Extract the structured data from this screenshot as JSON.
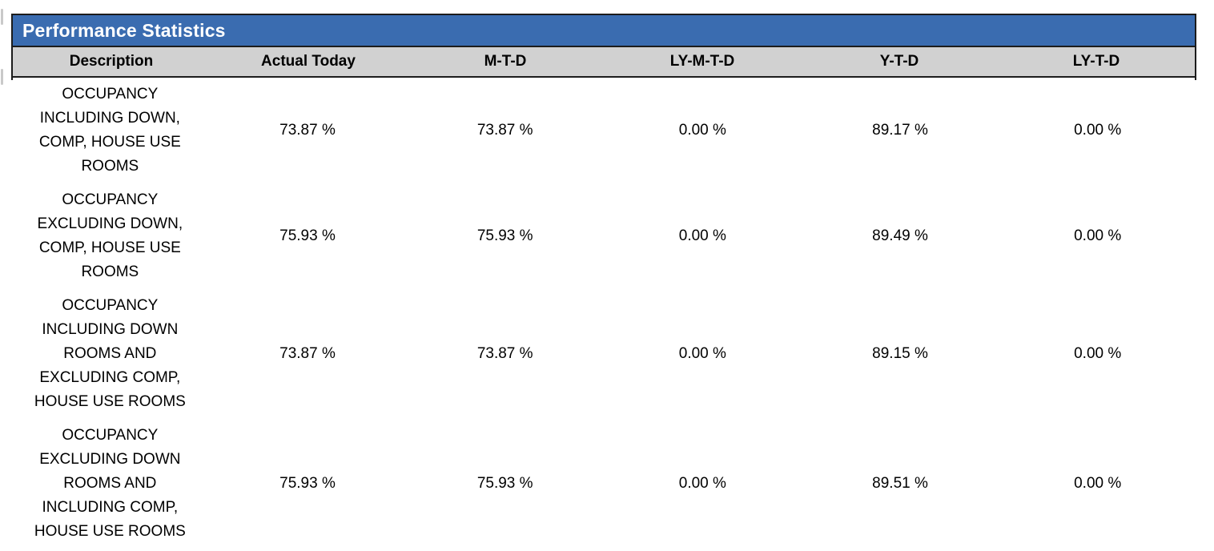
{
  "panel": {
    "title": "Performance Statistics",
    "colors": {
      "title_bar": "#3A6CB0",
      "title_text": "#FFFFFF",
      "header_row": "#D1D1D1",
      "border": "#1C1C1C",
      "body_text": "#000000"
    }
  },
  "table": {
    "columns": [
      {
        "key": "description",
        "label": "Description"
      },
      {
        "key": "actual_today",
        "label": "Actual Today"
      },
      {
        "key": "mtd",
        "label": "M-T-D"
      },
      {
        "key": "ly_mtd",
        "label": "LY-M-T-D"
      },
      {
        "key": "ytd",
        "label": "Y-T-D"
      },
      {
        "key": "ly_td",
        "label": "LY-T-D"
      }
    ],
    "rows": [
      {
        "description": "OCCUPANCY\nINCLUDING DOWN,\nCOMP, HOUSE USE\nROOMS",
        "actual_today": "73.87 %",
        "mtd": "73.87 %",
        "ly_mtd": "0.00 %",
        "ytd": "89.17 %",
        "ly_td": "0.00 %"
      },
      {
        "description": "OCCUPANCY\nEXCLUDING DOWN,\nCOMP, HOUSE USE\nROOMS",
        "actual_today": "75.93 %",
        "mtd": "75.93 %",
        "ly_mtd": "0.00 %",
        "ytd": "89.49 %",
        "ly_td": "0.00 %"
      },
      {
        "description": "OCCUPANCY\nINCLUDING DOWN\nROOMS AND\nEXCLUDING COMP,\nHOUSE USE ROOMS",
        "actual_today": "73.87 %",
        "mtd": "73.87 %",
        "ly_mtd": "0.00 %",
        "ytd": "89.15 %",
        "ly_td": "0.00 %"
      },
      {
        "description": "OCCUPANCY\nEXCLUDING DOWN\nROOMS AND\nINCLUDING COMP,\nHOUSE USE ROOMS",
        "actual_today": "75.93 %",
        "mtd": "75.93 %",
        "ly_mtd": "0.00 %",
        "ytd": "89.51 %",
        "ly_td": "0.00 %"
      }
    ]
  }
}
